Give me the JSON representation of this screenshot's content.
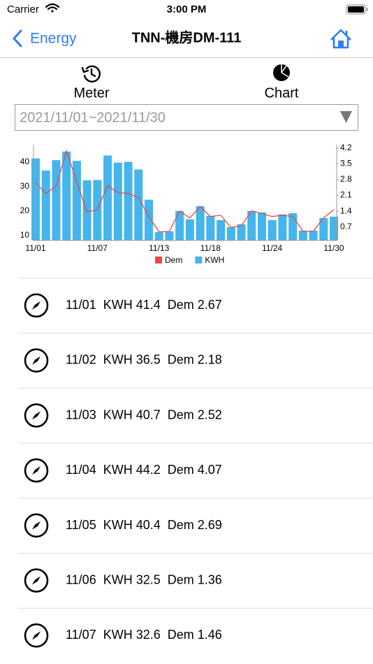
{
  "status_bar": {
    "carrier": "Carrier",
    "time": "3:00 PM"
  },
  "nav": {
    "back": "Energy",
    "title": "TNN-機房DM-111"
  },
  "tabs": [
    "Meter",
    "Chart"
  ],
  "date_range": "2021/11/01~2021/11/30",
  "chart_data": {
    "type": "bar",
    "categories": [
      "11/01",
      null,
      null,
      null,
      null,
      null,
      "11/07",
      null,
      null,
      null,
      null,
      null,
      "11/13",
      null,
      null,
      null,
      null,
      "11/18",
      null,
      null,
      null,
      null,
      null,
      "11/24",
      null,
      null,
      null,
      null,
      null,
      "11/30"
    ],
    "series": [
      {
        "name": "Dem",
        "color": "#e8474a",
        "type": "line",
        "axis": "y2",
        "values": [
          2.67,
          2.18,
          2.52,
          4.07,
          2.69,
          1.36,
          1.46,
          2.53,
          2.22,
          2.19,
          2.0,
          1.16,
          0.48,
          0.5,
          1.41,
          1.1,
          1.6,
          1.16,
          1.22,
          0.67,
          0.76,
          1.41,
          1.29,
          1.16,
          1.22,
          1.16,
          0.51,
          0.51,
          1.1,
          1.47
        ]
      },
      {
        "name": "KWH",
        "color": "#45b5ec",
        "type": "bar",
        "values": [
          41.4,
          36.5,
          40.7,
          44.2,
          40.4,
          32.5,
          32.6,
          42.6,
          39.7,
          40.0,
          36.9,
          24.6,
          11.4,
          11.7,
          20.0,
          16.6,
          22.0,
          18.0,
          16.3,
          13.4,
          14.6,
          20.0,
          19.4,
          16.3,
          18.6,
          19.1,
          12.0,
          12.0,
          17.1,
          17.7
        ]
      }
    ],
    "ylim": [
      8,
      47
    ],
    "yticks": [
      10,
      20,
      30,
      40
    ],
    "y2lim": [
      0.1,
      4.35
    ],
    "y2ticks": [
      0.7,
      1.4,
      2.1,
      2.8,
      3.5,
      4.2
    ],
    "legend": "bottom"
  },
  "list": {
    "rows": [
      {
        "date": "11/01",
        "kwh": "KWH 41.4",
        "dem": "Dem 2.67"
      },
      {
        "date": "11/02",
        "kwh": "KWH 36.5",
        "dem": "Dem 2.18"
      },
      {
        "date": "11/03",
        "kwh": "KWH 40.7",
        "dem": "Dem 2.52"
      },
      {
        "date": "11/04",
        "kwh": "KWH 44.2",
        "dem": "Dem 4.07"
      },
      {
        "date": "11/05",
        "kwh": "KWH 40.4",
        "dem": "Dem 2.69"
      },
      {
        "date": "11/06",
        "kwh": "KWH 32.5",
        "dem": "Dem 1.36"
      },
      {
        "date": "11/07",
        "kwh": "KWH 32.6",
        "dem": "Dem 1.46"
      }
    ]
  }
}
